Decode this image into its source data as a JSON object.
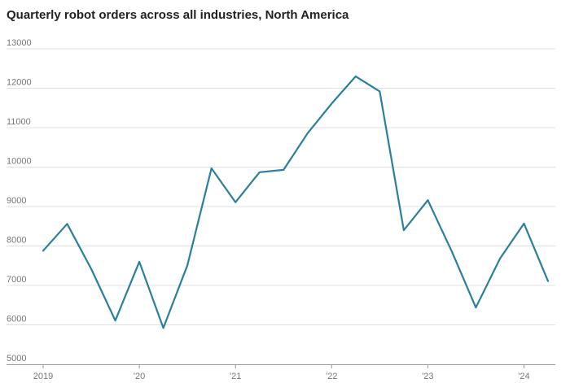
{
  "chart_data": {
    "type": "line",
    "title": "Quarterly robot orders across all industries, North America",
    "xlabel": "",
    "ylabel": "",
    "x": [
      "2019 Q1",
      "2019 Q2",
      "2019 Q3",
      "2019 Q4",
      "2020 Q1",
      "2020 Q2",
      "2020 Q3",
      "2020 Q4",
      "2021 Q1",
      "2021 Q2",
      "2021 Q3",
      "2021 Q4",
      "2022 Q1",
      "2022 Q2",
      "2022 Q3",
      "2022 Q4",
      "2023 Q1",
      "2023 Q2",
      "2023 Q3",
      "2023 Q4",
      "2024 Q1",
      "2024 Q2"
    ],
    "series": [
      {
        "values": [
          7880,
          8560,
          7420,
          6110,
          7600,
          5920,
          7510,
          9970,
          9110,
          9870,
          9930,
          10860,
          11610,
          12300,
          11920,
          8400,
          9160,
          7860,
          6440,
          7680,
          8570,
          7110
        ]
      }
    ],
    "ylim": [
      5000,
      13000
    ],
    "yticks": [
      "5000",
      "6000",
      "7000",
      "8000",
      "9000",
      "10000",
      "11000",
      "12000",
      "13000"
    ],
    "xticks": [
      {
        "label": "2019",
        "index": 0
      },
      {
        "label": "'20",
        "index": 4
      },
      {
        "label": "'21",
        "index": 8
      },
      {
        "label": "'22",
        "index": 12
      },
      {
        "label": "'23",
        "index": 16
      },
      {
        "label": "'24",
        "index": 20
      }
    ],
    "grid": true,
    "line_color": "#2a7f9e",
    "grid_color": "#e0e0e0",
    "axis_color": "#999999"
  }
}
